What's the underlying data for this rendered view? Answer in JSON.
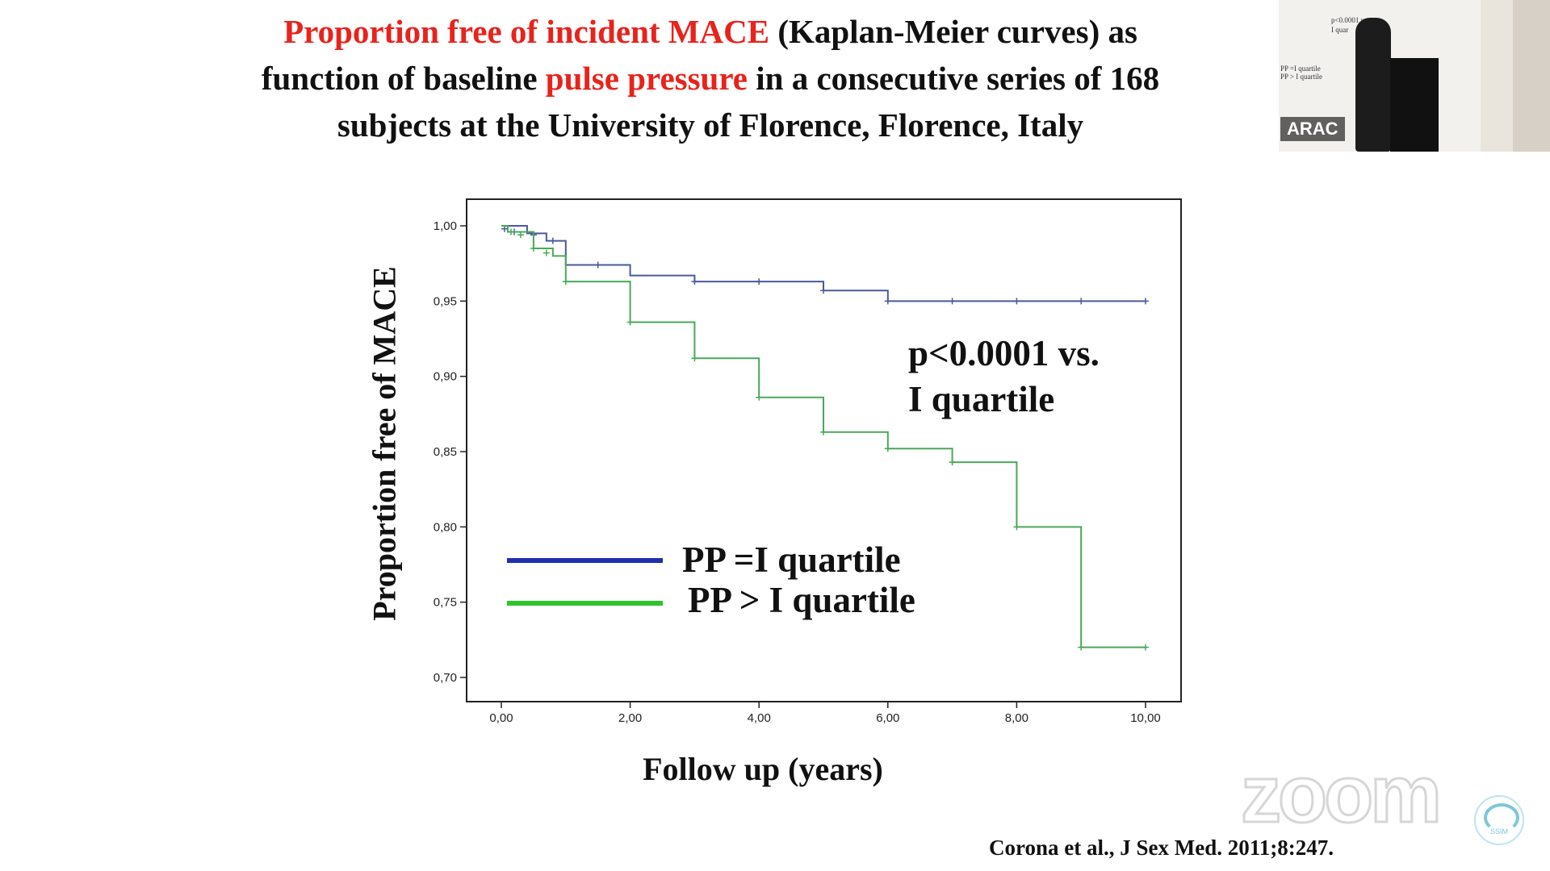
{
  "slide": {
    "title_line1_red": "Proportion free of incident MACE",
    "title_line1_rest": " (Kaplan-Meier curves) as",
    "title_line2_a": "function of baseline ",
    "title_line2_red": "pulse pressure",
    "title_line2_b": "  in a consecutive series of 168",
    "title_line3": "subjects at the University of Florence, Florence, Italy",
    "citation": "Corona et al., J Sex Med. 2011;8:247."
  },
  "colors": {
    "title_highlight": "#e8231c",
    "blue_series": "#1f2fb0",
    "green_series": "#2cc52c",
    "curve_blue": "#4a5a9a",
    "curve_green": "#4aa85a"
  },
  "chart_data": {
    "type": "line",
    "title": "",
    "xlabel": "Follow up (years)",
    "ylabel": "Proportion free of MACE",
    "xlim": [
      0,
      10
    ],
    "ylim": [
      0.7,
      1.0
    ],
    "x_ticks": [
      "0,00",
      "2,00",
      "4,00",
      "6,00",
      "8,00",
      "10,00"
    ],
    "y_ticks": [
      "0,70",
      "0,75",
      "0,80",
      "0,85",
      "0,90",
      "0,95",
      "1,00"
    ],
    "grid": false,
    "legend_position": "bottom-left",
    "annotation_line1": "p<0.0001 vs.",
    "annotation_line2": "I quartile",
    "series": [
      {
        "name": "PP =I quartile",
        "step": [
          [
            0,
            1.0
          ],
          [
            0.4,
            0.995
          ],
          [
            0.7,
            0.99
          ],
          [
            1.0,
            0.974
          ],
          [
            2.0,
            0.967
          ],
          [
            3.0,
            0.963
          ],
          [
            5.0,
            0.957
          ],
          [
            6.0,
            0.95
          ],
          [
            10.0,
            0.95
          ]
        ],
        "censored": [
          [
            0.05,
            0.998
          ],
          [
            0.2,
            0.996
          ],
          [
            0.5,
            0.994
          ],
          [
            0.8,
            0.99
          ],
          [
            1.5,
            0.974
          ],
          [
            3.0,
            0.963
          ],
          [
            4.0,
            0.963
          ],
          [
            5.0,
            0.957
          ],
          [
            6.0,
            0.95
          ],
          [
            7.0,
            0.95
          ],
          [
            8.0,
            0.95
          ],
          [
            9.0,
            0.95
          ],
          [
            10.0,
            0.95
          ]
        ]
      },
      {
        "name": "PP > I quartile",
        "step": [
          [
            0,
            1.0
          ],
          [
            0.1,
            0.996
          ],
          [
            0.5,
            0.985
          ],
          [
            0.8,
            0.98
          ],
          [
            1.0,
            0.963
          ],
          [
            2.0,
            0.936
          ],
          [
            3.0,
            0.912
          ],
          [
            4.0,
            0.886
          ],
          [
            5.0,
            0.863
          ],
          [
            6.0,
            0.852
          ],
          [
            7.0,
            0.843
          ],
          [
            8.0,
            0.8
          ],
          [
            9.0,
            0.72
          ],
          [
            10.0,
            0.72
          ]
        ],
        "censored": [
          [
            0.15,
            0.996
          ],
          [
            0.3,
            0.994
          ],
          [
            0.5,
            0.985
          ],
          [
            0.7,
            0.982
          ],
          [
            1.0,
            0.963
          ],
          [
            2.0,
            0.936
          ],
          [
            3.0,
            0.912
          ],
          [
            4.0,
            0.886
          ],
          [
            5.0,
            0.863
          ],
          [
            6.0,
            0.852
          ],
          [
            7.0,
            0.843
          ],
          [
            8.0,
            0.8
          ],
          [
            9.0,
            0.72
          ],
          [
            10.0,
            0.72
          ]
        ]
      }
    ]
  },
  "video_tile": {
    "name_label": "ARAC",
    "mini_pvalue": "p<0.0001 vs.",
    "mini_quartile": "I quar",
    "mini_legend1": "PP =I quartile",
    "mini_legend2": "PP > I quartile"
  },
  "zoom_watermark": "zoom",
  "corner_badge_text": "SSIM"
}
